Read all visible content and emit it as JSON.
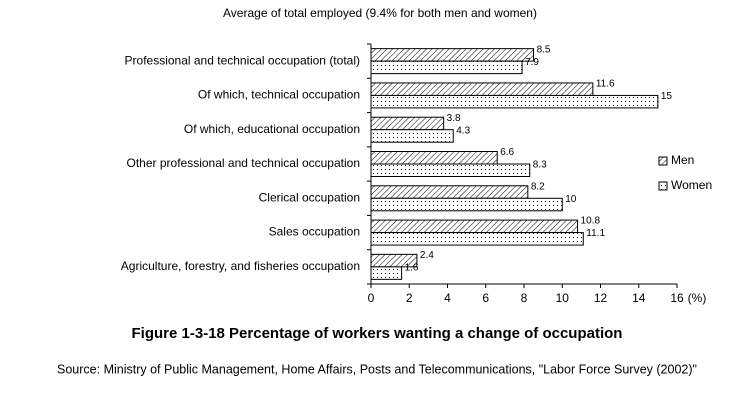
{
  "chart_data": {
    "type": "bar",
    "title": "Average of total employed (9.4% for both men and women)",
    "caption": "Figure 1-3-18    Percentage of workers wanting a change of occupation",
    "source": "Source: Ministry of Public Management, Home Affairs, Posts and Telecommunications, \"Labor Force Survey (2002)\"",
    "xlabel": "(%)",
    "categories": [
      "Professional and technical occupation (total)",
      "Of which, technical occupation",
      "Of which, educational occupation",
      "Other professional and technical occupation",
      "Clerical occupation",
      "Sales occupation",
      "Agriculture, forestry, and fisheries occupation"
    ],
    "series": [
      {
        "name": "Men",
        "color": "#000000",
        "pattern": "hatch",
        "values": [
          8.5,
          11.6,
          3.8,
          6.6,
          8.2,
          10.8,
          2.4
        ]
      },
      {
        "name": "Women",
        "color": "#000000",
        "pattern": "dots",
        "values": [
          7.9,
          15,
          4.3,
          8.3,
          10,
          11.1,
          1.6
        ]
      }
    ],
    "xlim": [
      0,
      16
    ],
    "xticks": [
      0,
      2,
      4,
      6,
      8,
      10,
      12,
      14,
      16
    ]
  }
}
